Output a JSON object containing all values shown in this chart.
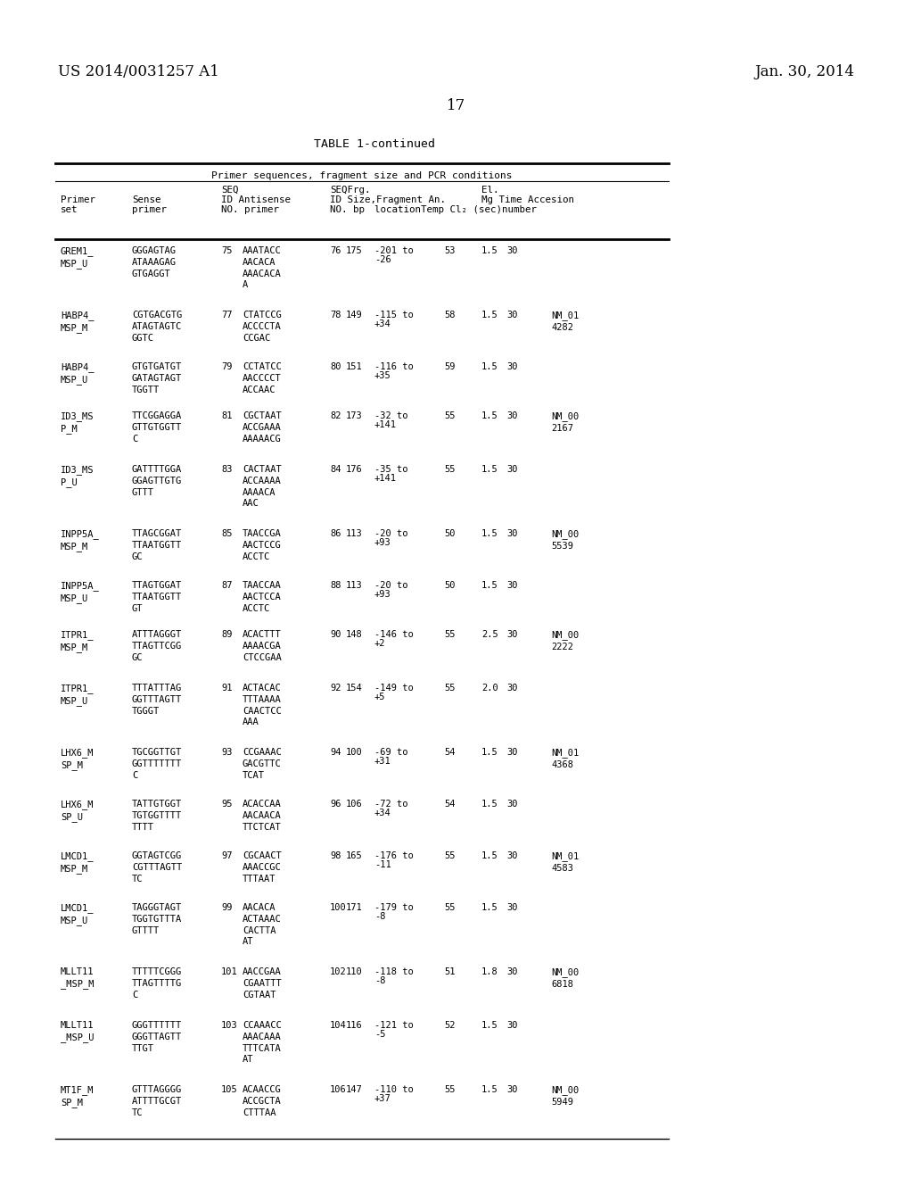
{
  "bg_color": "#ffffff",
  "header_left": "US 2014/0031257 A1",
  "header_right": "Jan. 30, 2014",
  "page_number": "17",
  "table_title": "TABLE 1-continued",
  "table_subtitle": "Primer sequences, fragment size and PCR conditions",
  "rows": [
    {
      "primer_set": "GREM1_\nMSP_U",
      "sense": "GGGAGTAG\nATAAAGAG\nGTGAGGT",
      "seq_id": "75",
      "antisense": "AAATACC\nAACACA\nAAACACА\nA",
      "frg_id": "76",
      "frg_size": "175",
      "loc1": "-201 to",
      "loc2": "-26",
      "temp": "53",
      "mg": "1.5",
      "time": "30",
      "accession": ""
    },
    {
      "primer_set": "HABP4_\nMSP_M",
      "sense": "CGTGACGTG\nATAGTAGTC\nGGTC",
      "seq_id": "77",
      "antisense": "CTATCCG\nACCCCTA\nCCGAC",
      "frg_id": "78",
      "frg_size": "149",
      "loc1": "-115 to",
      "loc2": "+34",
      "temp": "58",
      "mg": "1.5",
      "time": "30",
      "accession": "NM_01\n4282"
    },
    {
      "primer_set": "HABP4_\nMSP_U",
      "sense": "GTGTGATGT\nGATAGTAGT\nTGGTT",
      "seq_id": "79",
      "antisense": "CCTATCC\nAACCCCT\nACCAAC",
      "frg_id": "80",
      "frg_size": "151",
      "loc1": "-116 to",
      "loc2": "+35",
      "temp": "59",
      "mg": "1.5",
      "time": "30",
      "accession": ""
    },
    {
      "primer_set": "ID3_MS\nP_M",
      "sense": "TTCGGAGGA\nGTTGTGGTT\nC",
      "seq_id": "81",
      "antisense": "CGCTAAT\nACCGAAA\nAAAAACG",
      "frg_id": "82",
      "frg_size": "173",
      "loc1": "-32 to",
      "loc2": "+141",
      "temp": "55",
      "mg": "1.5",
      "time": "30",
      "accession": "NM_00\n2167"
    },
    {
      "primer_set": "ID3_MS\nP_U",
      "sense": "GATTTTGGA\nGGAGTTGTG\nGTTT",
      "seq_id": "83",
      "antisense": "CACTAAT\nACCAAAA\nAAAACA\nAAC",
      "frg_id": "84",
      "frg_size": "176",
      "loc1": "-35 to",
      "loc2": "+141",
      "temp": "55",
      "mg": "1.5",
      "time": "30",
      "accession": ""
    },
    {
      "primer_set": "INPP5A_\nMSP_M",
      "sense": "TTAGCGGAT\nTTAATGGTT\nGC",
      "seq_id": "85",
      "antisense": "TAACCGA\nAACTCCG\nACCTC",
      "frg_id": "86",
      "frg_size": "113",
      "loc1": "-20 to",
      "loc2": "+93",
      "temp": "50",
      "mg": "1.5",
      "time": "30",
      "accession": "NM_00\n5539"
    },
    {
      "primer_set": "INPP5A_\nMSP_U",
      "sense": "TTAGTGGAT\nTTAATGGTT\nGT",
      "seq_id": "87",
      "antisense": "TAACCAA\nAACTCCA\nACCTC",
      "frg_id": "88",
      "frg_size": "113",
      "loc1": "-20 to",
      "loc2": "+93",
      "temp": "50",
      "mg": "1.5",
      "time": "30",
      "accession": ""
    },
    {
      "primer_set": "ITPR1_\nMSP_M",
      "sense": "ATTTAGGGT\nTTAGTTCGG\nGC",
      "seq_id": "89",
      "antisense": "ACACTTT\nAAAACGA\nCTCCGAA",
      "frg_id": "90",
      "frg_size": "148",
      "loc1": "-146 to",
      "loc2": "+2",
      "temp": "55",
      "mg": "2.5",
      "time": "30",
      "accession": "NM_00\n2222"
    },
    {
      "primer_set": "ITPR1_\nMSP_U",
      "sense": "TTTATTTAG\nGGTTTAGTT\nTGGGT",
      "seq_id": "91",
      "antisense": "ACTACAC\nTTTAAAA\nCAACTCC\nAAA",
      "frg_id": "92",
      "frg_size": "154",
      "loc1": "-149 to",
      "loc2": "+5",
      "temp": "55",
      "mg": "2.0",
      "time": "30",
      "accession": ""
    },
    {
      "primer_set": "LHX6_M\nSP_M",
      "sense": "TGCGGTTGT\nGGTTTTTTT\nC",
      "seq_id": "93",
      "antisense": "CCGAAAC\nGACGTTC\nTCAT",
      "frg_id": "94",
      "frg_size": "100",
      "loc1": "-69 to",
      "loc2": "+31",
      "temp": "54",
      "mg": "1.5",
      "time": "30",
      "accession": "NM_01\n4368"
    },
    {
      "primer_set": "LHX6_M\nSP_U",
      "sense": "TATTGTGGT\nTGTGGTTTT\nTTTT",
      "seq_id": "95",
      "antisense": "ACACCAA\nAACAACА\nTTCTCAT",
      "frg_id": "96",
      "frg_size": "106",
      "loc1": "-72 to",
      "loc2": "+34",
      "temp": "54",
      "mg": "1.5",
      "time": "30",
      "accession": ""
    },
    {
      "primer_set": "LMCD1_\nMSP_M",
      "sense": "GGTAGTCGG\nCGTTTAGTT\nTC",
      "seq_id": "97",
      "antisense": "CGCAACT\nAAACCGC\nTTTAAT",
      "frg_id": "98",
      "frg_size": "165",
      "loc1": "-176 to",
      "loc2": "-11",
      "temp": "55",
      "mg": "1.5",
      "time": "30",
      "accession": "NM_01\n4583"
    },
    {
      "primer_set": "LMCD1_\nMSP_U",
      "sense": "TAGGGТАGT\nTGGTGTTTA\nGTTTT",
      "seq_id": "99",
      "antisense": "AACACA\nACTAAAC\nCACTTA\nAT",
      "frg_id": "100",
      "frg_size": "171",
      "loc1": "-179 to",
      "loc2": "-8",
      "temp": "55",
      "mg": "1.5",
      "time": "30",
      "accession": ""
    },
    {
      "primer_set": "MLLT11\n_MSP_M",
      "sense": "TTTTTCGGG\nTTAGTTTTG\nC",
      "seq_id": "101",
      "antisense": "AACCGAA\nCGAATTT\nCGTAAT",
      "frg_id": "102",
      "frg_size": "110",
      "loc1": "-118 to",
      "loc2": "-8",
      "temp": "51",
      "mg": "1.8",
      "time": "30",
      "accession": "NM_00\n6818"
    },
    {
      "primer_set": "MLLT11\n_MSP_U",
      "sense": "GGGTTTTTT\nGGGTTAGTT\nTTGT",
      "seq_id": "103",
      "antisense": "CCAAACC\nAAACAAA\nTTTCATA\nAT",
      "frg_id": "104",
      "frg_size": "116",
      "loc1": "-121 to",
      "loc2": "-5",
      "temp": "52",
      "mg": "1.5",
      "time": "30",
      "accession": ""
    },
    {
      "primer_set": "MT1F_M\nSP_M",
      "sense": "GTTTAGGGG\nATTTTGCGT\nTC",
      "seq_id": "105",
      "antisense": "ACAACCG\nACCGCTA\nCTTTAA",
      "frg_id": "106",
      "frg_size": "147",
      "loc1": "-110 to",
      "loc2": "+37",
      "temp": "55",
      "mg": "1.5",
      "time": "30",
      "accession": "NM_00\n5949"
    }
  ]
}
